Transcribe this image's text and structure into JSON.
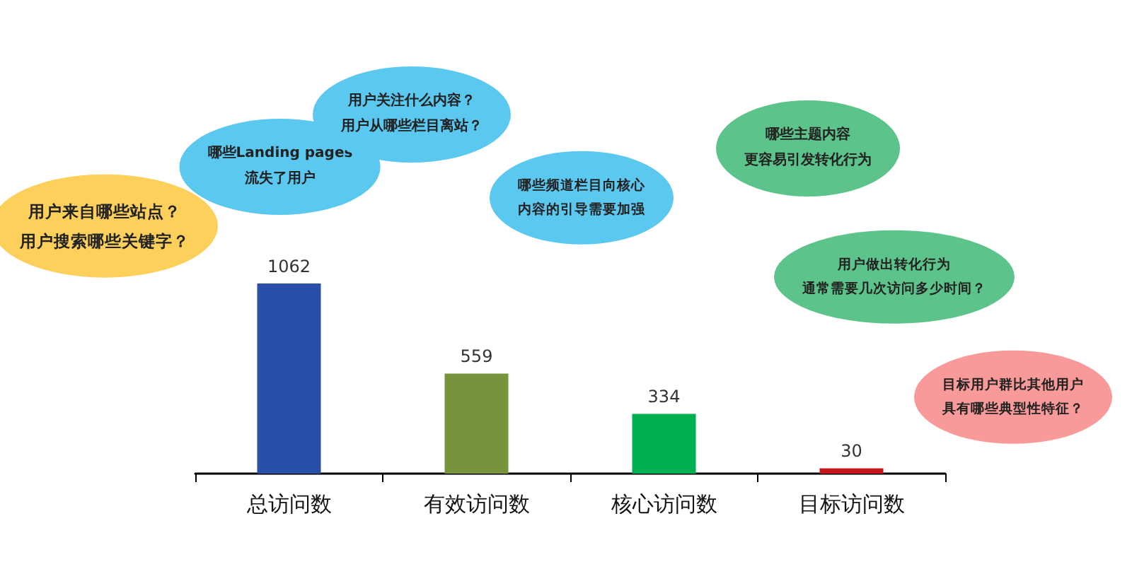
{
  "chart_data": {
    "type": "bar",
    "categories": [
      "总访问数",
      "有效访问数",
      "核心访问数",
      "目标访问数"
    ],
    "values": [
      1062,
      559,
      334,
      30
    ],
    "colors": [
      "#2a4fa8",
      "#77933c",
      "#00b050",
      "#c8161d"
    ],
    "data_labels": true,
    "tick_labels": "x",
    "grid": false,
    "annotations": [
      "用户来自哪些站点？用户搜索哪些关键字？",
      "哪些Landing pages流失了用户",
      "用户关注什么内容？用户从哪些栏目离站？",
      "哪些频道栏目向核心内容的引导需要加强",
      "哪些主题内容更容易引发转化行为",
      "用户做出转化行为通常需要几次访问多少时间？",
      "目标用户群比其他用户具有哪些典型性特征？"
    ]
  }
}
